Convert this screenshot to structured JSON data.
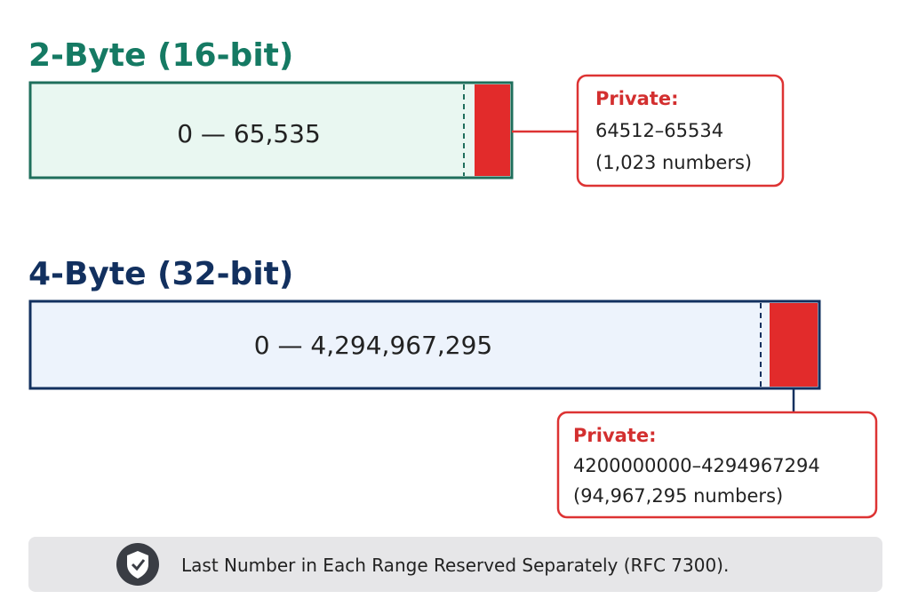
{
  "sections": [
    {
      "title": "2-Byte (16-bit)",
      "range": "0 — 65,535",
      "private_label": "Private:",
      "private_range": "64512–65534",
      "private_count": "(1,023 numbers)"
    },
    {
      "title": "4-Byte (32-bit)",
      "range": "0 — 4,294,967,295",
      "private_label": "Private:",
      "private_range": "4200000000–4294967294",
      "private_count": "(94,967,295 numbers)"
    }
  ],
  "footer": {
    "note": "Last Number in Each Range Reserved Separately (RFC 7300)."
  }
}
